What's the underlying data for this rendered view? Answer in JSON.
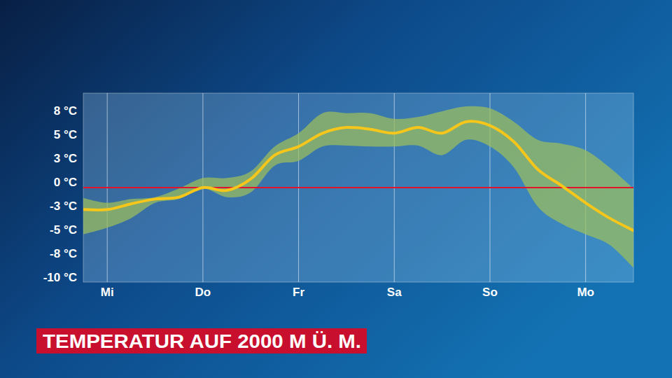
{
  "chart_data": {
    "type": "line",
    "title": "TEMPERATUR AUF 2000 M Ü. M.",
    "x": [
      -6,
      0,
      6,
      12,
      18,
      24,
      30,
      36,
      42,
      48,
      54,
      60,
      66,
      72,
      78,
      84,
      90,
      96,
      102,
      108,
      114,
      120,
      126,
      132
    ],
    "values": [
      -2.9,
      -2.9,
      -2.3,
      -1.8,
      -1.6,
      -0.6,
      -0.9,
      0.3,
      2.8,
      3.7,
      5.1,
      5.7,
      5.5,
      5.1,
      5.7,
      5.1,
      6.3,
      5.9,
      4.2,
      1.3,
      -0.4,
      -2.2,
      -3.8,
      -5.1
    ],
    "color": "#f7c61a",
    "range_lower": [
      -5.5,
      -4.8,
      -3.8,
      -2.2,
      -1.8,
      -0.7,
      -1.6,
      -1.1,
      1.7,
      2.2,
      3.7,
      3.8,
      3.7,
      3.7,
      3.8,
      2.8,
      4.4,
      3.7,
      1.5,
      -2.6,
      -4.4,
      -5.5,
      -6.6,
      -9.0
    ],
    "range_upper": [
      -1.7,
      -2.2,
      -1.8,
      -1.6,
      -0.7,
      0.4,
      0.4,
      1.1,
      3.7,
      5.1,
      7.2,
      7.2,
      7.2,
      6.6,
      6.8,
      7.4,
      7.9,
      7.7,
      6.3,
      4.4,
      4.0,
      3.3,
      1.5,
      -0.7
    ],
    "range_color": "#9cbf5c",
    "reference_line": {
      "value": -0.6,
      "color": "#e3132c"
    },
    "xlim": [
      -6,
      132
    ],
    "xticks": [
      {
        "value": 0,
        "label": "Mi"
      },
      {
        "value": 24,
        "label": "Do"
      },
      {
        "value": 48,
        "label": "Fr"
      },
      {
        "value": 72,
        "label": "Sa"
      },
      {
        "value": 96,
        "label": "So"
      },
      {
        "value": 120,
        "label": "Mo"
      }
    ],
    "ylim": [
      -10.5,
      9.3
    ],
    "yticks": [
      {
        "value": 7.5,
        "label": "8 °C"
      },
      {
        "value": 5,
        "label": "5 °C"
      },
      {
        "value": 2.5,
        "label": "3 °C"
      },
      {
        "value": 0,
        "label": "0 °C"
      },
      {
        "value": -2.5,
        "label": "-3 °C"
      },
      {
        "value": -5,
        "label": "-5 °C"
      },
      {
        "value": -7.5,
        "label": "-8 °C"
      },
      {
        "value": -10,
        "label": "-10 °C"
      }
    ],
    "grid": "x"
  }
}
